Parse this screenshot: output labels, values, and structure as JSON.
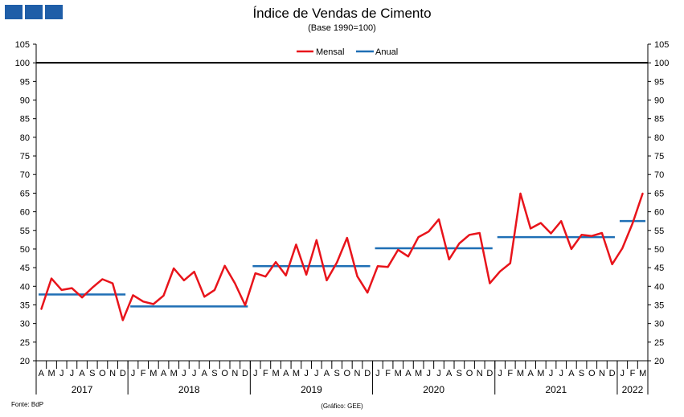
{
  "chart_data": {
    "type": "line",
    "title": "Índice de Vendas de Cimento",
    "subtitle": "(Base 1990=100)",
    "ylim": [
      20,
      105
    ],
    "yticks": [
      20,
      25,
      30,
      35,
      40,
      45,
      50,
      55,
      60,
      65,
      70,
      75,
      80,
      85,
      90,
      95,
      100,
      105
    ],
    "reference_line": 100,
    "months": [
      "A",
      "M",
      "J",
      "J",
      "A",
      "S",
      "O",
      "N",
      "D",
      "J",
      "F",
      "M",
      "A",
      "M",
      "J",
      "J",
      "A",
      "S",
      "O",
      "N",
      "D",
      "J",
      "F",
      "M",
      "A",
      "M",
      "J",
      "J",
      "A",
      "S",
      "O",
      "N",
      "D",
      "J",
      "F",
      "M",
      "A",
      "M",
      "J",
      "J",
      "A",
      "S",
      "O",
      "N",
      "D",
      "J",
      "F",
      "M",
      "A",
      "M",
      "J",
      "J",
      "A",
      "S",
      "O",
      "N",
      "D",
      "J",
      "F",
      "M"
    ],
    "years": [
      {
        "label": "2017",
        "start": 0,
        "end": 9
      },
      {
        "label": "2018",
        "start": 9,
        "end": 21
      },
      {
        "label": "2019",
        "start": 21,
        "end": 33
      },
      {
        "label": "2020",
        "start": 33,
        "end": 45
      },
      {
        "label": "2021",
        "start": 45,
        "end": 57
      },
      {
        "label": "2022",
        "start": 57,
        "end": 60
      }
    ],
    "series": [
      {
        "name": "Mensal",
        "color": "#e8141b",
        "values": [
          33.8,
          42.1,
          39.0,
          39.5,
          37.0,
          39.6,
          41.9,
          40.8,
          30.9,
          37.6,
          35.9,
          35.2,
          37.5,
          44.8,
          41.6,
          43.9,
          37.2,
          39.0,
          45.5,
          40.8,
          34.9,
          43.5,
          42.6,
          46.5,
          42.9,
          51.2,
          43.1,
          52.4,
          41.6,
          46.4,
          53.0,
          42.7,
          38.3,
          45.4,
          45.2,
          49.8,
          48.0,
          53.2,
          54.7,
          58.0,
          47.2,
          51.5,
          53.8,
          54.3,
          40.8,
          44.0,
          46.2,
          64.9,
          55.5,
          57.0,
          54.2,
          57.5,
          50.0,
          53.8,
          53.5,
          54.3,
          45.9,
          50.2,
          56.9,
          65.0
        ]
      },
      {
        "name": "Anual",
        "color": "#1f6fb5",
        "segments": [
          {
            "start": 0,
            "end": 9,
            "value": 37.8
          },
          {
            "start": 9,
            "end": 21,
            "value": 34.6
          },
          {
            "start": 21,
            "end": 33,
            "value": 45.4
          },
          {
            "start": 33,
            "end": 45,
            "value": 50.2
          },
          {
            "start": 45,
            "end": 57,
            "value": 53.2
          },
          {
            "start": 57,
            "end": 60,
            "value": 57.5
          }
        ]
      }
    ]
  },
  "footer": {
    "source": "Fonte: BdP",
    "credit": "(Gráfico: GEE)"
  },
  "colors": {
    "logo": "#1f5ea8",
    "reference_line": "#000000"
  }
}
